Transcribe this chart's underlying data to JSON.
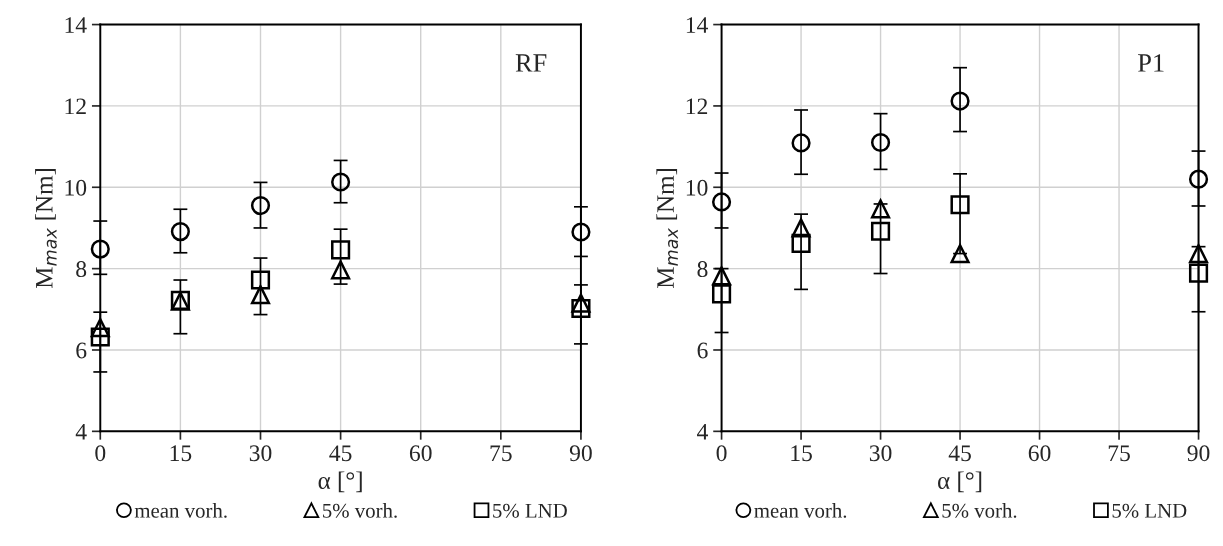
{
  "chart_data": [
    {
      "type": "scatter",
      "xlabel": "α [°]",
      "ylabel": "M$_{max}$ [Nm]",
      "annotations": [
        "RF"
      ],
      "x": [
        0,
        15,
        30,
        45,
        90
      ],
      "xlim": [
        0,
        90
      ],
      "xticks": [
        0,
        15,
        30,
        45,
        60,
        75,
        90
      ],
      "ylim": [
        4,
        14
      ],
      "yticks": [
        4,
        6,
        8,
        10,
        12,
        14
      ],
      "grid": true,
      "legend": "bottom",
      "series": [
        {
          "name": "mean vorh.",
          "color": "#000000",
          "marker": "circle",
          "values": [
            8.48,
            8.91,
            9.55,
            10.13,
            8.9
          ],
          "errors": [
            [
              7.86,
              9.17
            ],
            [
              8.39,
              9.46
            ],
            [
              9.0,
              10.12
            ],
            [
              9.62,
              10.66
            ],
            [
              8.3,
              9.52
            ]
          ]
        },
        {
          "name": "5% vorh.",
          "color": "#000000",
          "marker": "triangle",
          "values": [
            6.55,
            7.2,
            7.36,
            7.97,
            7.15
          ]
        },
        {
          "name": "5% LND",
          "color": "#000000",
          "marker": "square",
          "values": [
            6.32,
            7.22,
            7.72,
            8.46,
            7.02
          ],
          "errors": [
            [
              5.46,
              6.93
            ],
            [
              6.4,
              7.72
            ],
            [
              6.87,
              8.26
            ],
            [
              7.62,
              8.97
            ],
            [
              6.15,
              7.6
            ]
          ]
        }
      ]
    },
    {
      "type": "scatter",
      "xlabel": "α [°]",
      "ylabel": "M$_{max}$ [Nm]",
      "annotations": [
        "P1"
      ],
      "x": [
        0,
        15,
        30,
        45,
        90
      ],
      "xlim": [
        0,
        90
      ],
      "xticks": [
        0,
        15,
        30,
        45,
        60,
        75,
        90
      ],
      "ylim": [
        4,
        14
      ],
      "yticks": [
        4,
        6,
        8,
        10,
        12,
        14
      ],
      "grid": true,
      "legend": "bottom",
      "series": [
        {
          "name": "mean vorh.",
          "color": "#000000",
          "marker": "circle",
          "values": [
            9.64,
            11.09,
            11.1,
            12.12,
            10.2
          ],
          "errors": [
            [
              9.0,
              10.35
            ],
            [
              10.32,
              11.9
            ],
            [
              10.44,
              11.81
            ],
            [
              11.37,
              12.94
            ],
            [
              9.54,
              10.89
            ]
          ]
        },
        {
          "name": "5% vorh.",
          "color": "#000000",
          "marker": "triangle",
          "values": [
            7.82,
            9.0,
            9.47,
            8.37,
            8.37
          ]
        },
        {
          "name": "5% LND",
          "color": "#000000",
          "marker": "square",
          "values": [
            7.38,
            8.62,
            8.92,
            9.57,
            7.89
          ],
          "errors": [
            [
              6.43,
              8.0
            ],
            [
              7.49,
              9.34
            ],
            [
              7.88,
              9.59
            ],
            [
              8.37,
              10.33
            ],
            [
              6.94,
              8.54
            ]
          ]
        }
      ]
    }
  ]
}
